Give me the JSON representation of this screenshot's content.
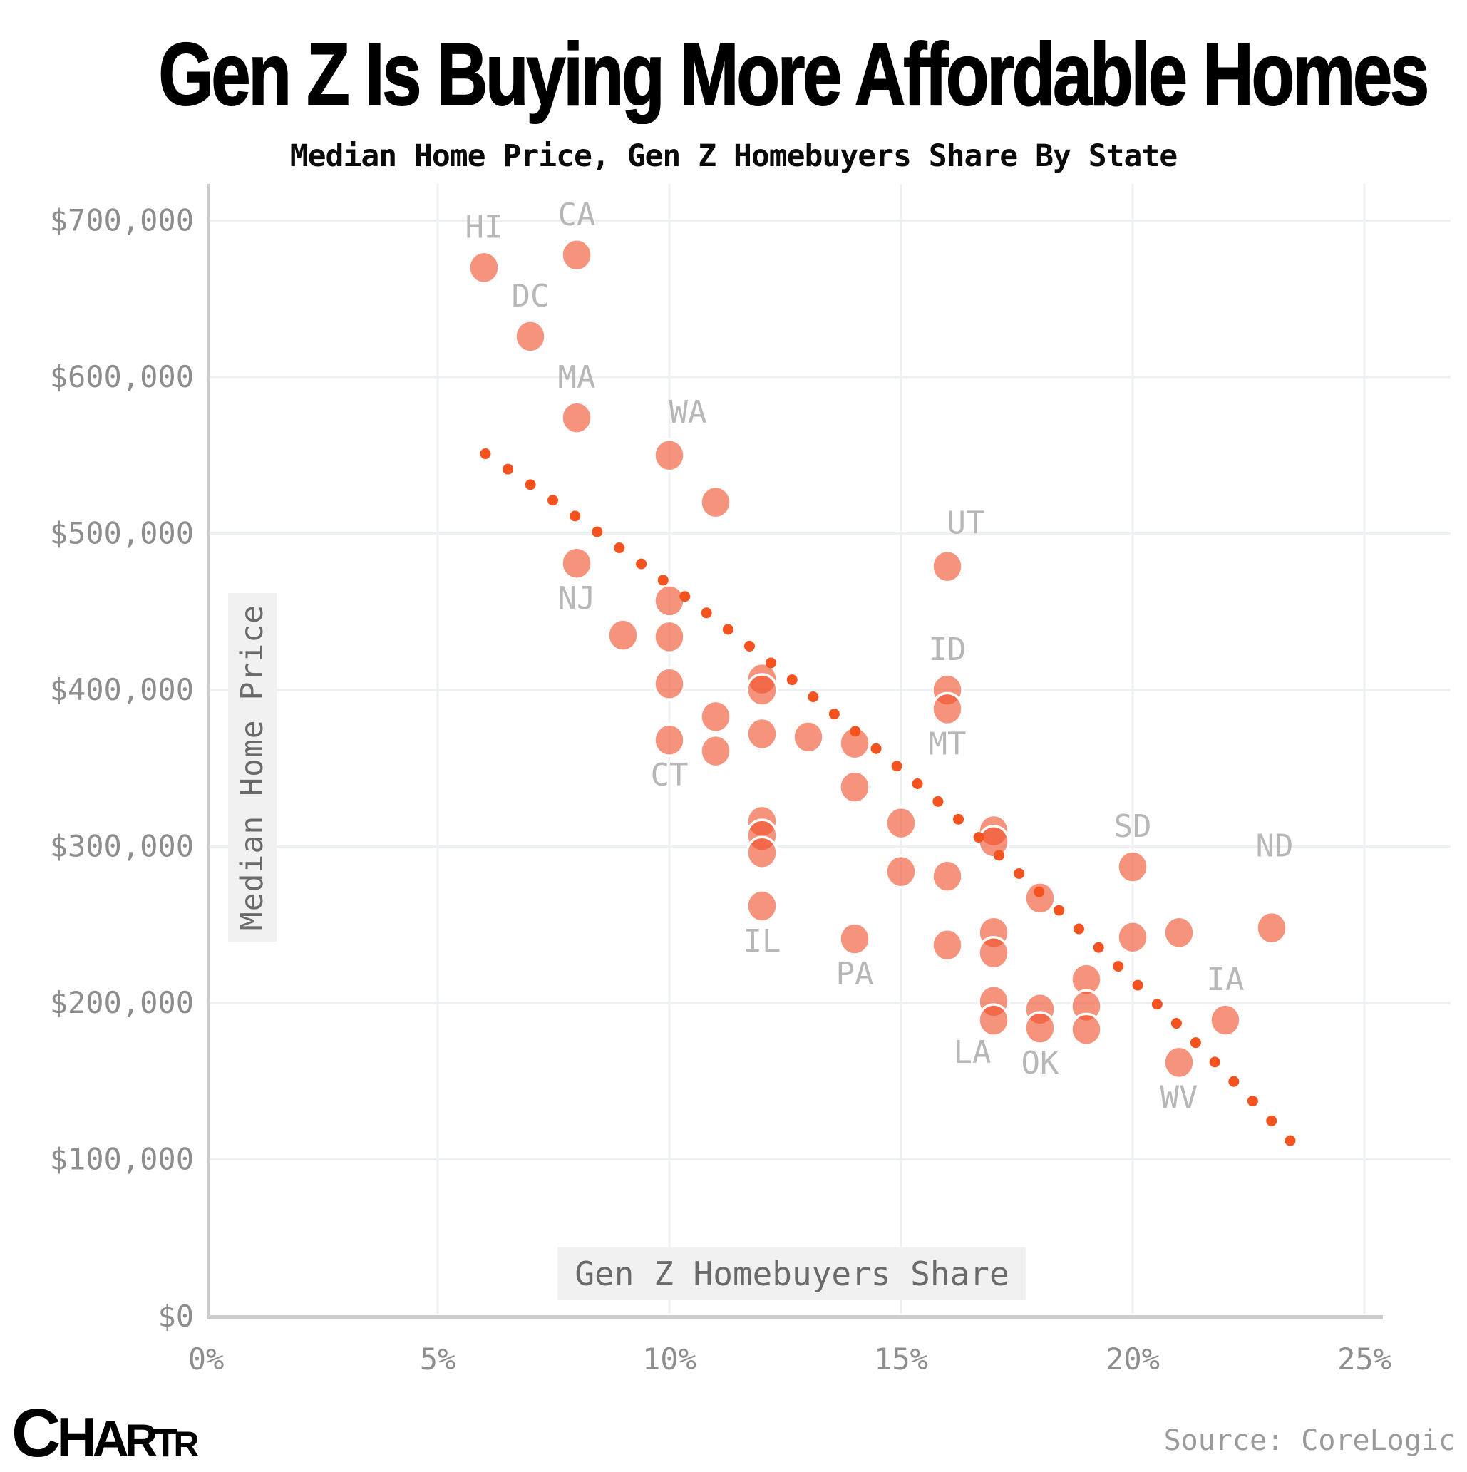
{
  "header": {
    "title": "Gen Z Is Buying More Affordable Homes",
    "subtitle": "Median Home Price, Gen Z Homebuyers Share By State"
  },
  "chart_data": {
    "type": "scatter",
    "xlabel": "Gen Z Homebuyers Share",
    "ylabel": "Median Home Price",
    "xlim": [
      0,
      27
    ],
    "ylim": [
      0,
      700000
    ],
    "grid": true,
    "x_ticks": [
      {
        "label": "0%",
        "value": 0
      },
      {
        "label": "5%",
        "value": 5
      },
      {
        "label": "10%",
        "value": 10
      },
      {
        "label": "15%",
        "value": 15
      },
      {
        "label": "20%",
        "value": 20
      },
      {
        "label": "25%",
        "value": 25
      }
    ],
    "y_ticks": [
      {
        "label": "$0",
        "value": 0
      },
      {
        "label": "$100,000",
        "value": 100000
      },
      {
        "label": "$200,000",
        "value": 200000
      },
      {
        "label": "$300,000",
        "value": 300000
      },
      {
        "label": "$400,000",
        "value": 400000
      },
      {
        "label": "$500,000",
        "value": 500000
      },
      {
        "label": "$600,000",
        "value": 600000
      },
      {
        "label": "$700,000",
        "value": 700000
      }
    ],
    "points": [
      {
        "state": "HI",
        "share_pct": 6,
        "price": 670000,
        "label_pos": "above"
      },
      {
        "state": "CA",
        "share_pct": 8,
        "price": 678000,
        "label_pos": "above"
      },
      {
        "state": "DC",
        "share_pct": 7,
        "price": 626000,
        "label_pos": "above"
      },
      {
        "state": "MA",
        "share_pct": 8,
        "price": 574000,
        "label_pos": "above"
      },
      {
        "state": "WA",
        "share_pct": 10,
        "price": 550000,
        "label_pos": "above-right"
      },
      {
        "state": "",
        "share_pct": 11,
        "price": 520000
      },
      {
        "state": "NJ",
        "share_pct": 8,
        "price": 481000,
        "label_pos": "below"
      },
      {
        "state": "UT",
        "share_pct": 16,
        "price": 479000,
        "label_pos": "above-right"
      },
      {
        "state": "",
        "share_pct": 10,
        "price": 457000
      },
      {
        "state": "",
        "share_pct": 9,
        "price": 435000
      },
      {
        "state": "",
        "share_pct": 10,
        "price": 434000
      },
      {
        "state": "",
        "share_pct": 12,
        "price": 407000
      },
      {
        "state": "",
        "share_pct": 12,
        "price": 400000
      },
      {
        "state": "",
        "share_pct": 10,
        "price": 404000
      },
      {
        "state": "ID",
        "share_pct": 16,
        "price": 400000,
        "label_pos": "above"
      },
      {
        "state": "MT",
        "share_pct": 16,
        "price": 388000,
        "label_pos": "below"
      },
      {
        "state": "",
        "share_pct": 11,
        "price": 383000
      },
      {
        "state": "",
        "share_pct": 12,
        "price": 372000
      },
      {
        "state": "",
        "share_pct": 13,
        "price": 370000
      },
      {
        "state": "",
        "share_pct": 14,
        "price": 366000
      },
      {
        "state": "CT",
        "share_pct": 10,
        "price": 368000,
        "label_pos": "below"
      },
      {
        "state": "",
        "share_pct": 11,
        "price": 361000
      },
      {
        "state": "",
        "share_pct": 14,
        "price": 338000
      },
      {
        "state": "",
        "share_pct": 12,
        "price": 316000
      },
      {
        "state": "",
        "share_pct": 15,
        "price": 315000
      },
      {
        "state": "",
        "share_pct": 17,
        "price": 310000
      },
      {
        "state": "",
        "share_pct": 17,
        "price": 303000
      },
      {
        "state": "",
        "share_pct": 12,
        "price": 307000
      },
      {
        "state": "",
        "share_pct": 12,
        "price": 296000
      },
      {
        "state": "SD",
        "share_pct": 20,
        "price": 287000,
        "label_pos": "above"
      },
      {
        "state": "",
        "share_pct": 15,
        "price": 284000
      },
      {
        "state": "",
        "share_pct": 16,
        "price": 281000
      },
      {
        "state": "",
        "share_pct": 18,
        "price": 267000
      },
      {
        "state": "IL",
        "share_pct": 12,
        "price": 262000,
        "label_pos": "below"
      },
      {
        "state": "",
        "share_pct": 17,
        "price": 245000
      },
      {
        "state": "",
        "share_pct": 20,
        "price": 242000
      },
      {
        "state": "",
        "share_pct": 21,
        "price": 245000
      },
      {
        "state": "ND",
        "share_pct": 23,
        "price": 248000,
        "label_pos": "above-far"
      },
      {
        "state": "",
        "share_pct": 16,
        "price": 237000
      },
      {
        "state": "",
        "share_pct": 17,
        "price": 232000
      },
      {
        "state": "PA",
        "share_pct": 14,
        "price": 241000,
        "label_pos": "below"
      },
      {
        "state": "",
        "share_pct": 19,
        "price": 215000
      },
      {
        "state": "",
        "share_pct": 17,
        "price": 201000
      },
      {
        "state": "LA",
        "share_pct": 17,
        "price": 189000,
        "label_pos": "below-left"
      },
      {
        "state": "",
        "share_pct": 19,
        "price": 198000
      },
      {
        "state": "",
        "share_pct": 18,
        "price": 196000
      },
      {
        "state": "OK",
        "share_pct": 18,
        "price": 184000,
        "label_pos": "below"
      },
      {
        "state": "",
        "share_pct": 19,
        "price": 183000
      },
      {
        "state": "IA",
        "share_pct": 22,
        "price": 189000,
        "label_pos": "above"
      },
      {
        "state": "WV",
        "share_pct": 21,
        "price": 162000,
        "label_pos": "below"
      }
    ],
    "trendline": {
      "style": "dotted",
      "start": {
        "share_pct": 6.03,
        "price": 551000
      },
      "control": {
        "share_pct": 15.55,
        "price": 360000
      },
      "end": {
        "share_pct": 23.4,
        "price": 112000
      },
      "dot_count": 40
    },
    "colors": {
      "dot_fill": "#f0502d",
      "dot_stroke": "#ffffff",
      "trend": "#f4521e",
      "grid": "#eef1f4",
      "axis": "#cccccc",
      "tick_text": "#8d8d8d",
      "state_label": "#b7b7b7"
    }
  },
  "footer": {
    "logo": "CHARTR",
    "source": "Source: CoreLogic"
  }
}
